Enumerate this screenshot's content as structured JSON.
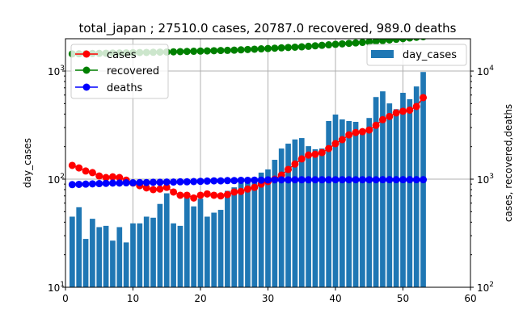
{
  "chart_data": {
    "type": "bar+line",
    "title": "total_japan ; 27510.0 cases, 20787.0 recovered, 989.0 deaths",
    "xlabel": "",
    "ylabel_left": "day_cases",
    "ylabel_right": "cases, recovered,deaths",
    "xlim": [
      0,
      60
    ],
    "x_ticks": [
      0,
      10,
      20,
      30,
      40,
      50,
      60
    ],
    "ylim_left": [
      10,
      1990
    ],
    "ylim_right": [
      100,
      19900
    ],
    "y_scale": "log",
    "y_ticks_left": [
      10,
      100,
      1000
    ],
    "y_ticks_right": [
      100,
      1000,
      10000
    ],
    "grid": true,
    "x": [
      1,
      2,
      3,
      4,
      5,
      6,
      7,
      8,
      9,
      10,
      11,
      12,
      13,
      14,
      15,
      16,
      17,
      18,
      19,
      20,
      21,
      22,
      23,
      24,
      25,
      26,
      27,
      28,
      29,
      30,
      31,
      32,
      33,
      34,
      35,
      36,
      37,
      38,
      39,
      40,
      41,
      42,
      43,
      44,
      45,
      46,
      47,
      48,
      49,
      50,
      51,
      52,
      53
    ],
    "bar_series": {
      "name": "day_cases",
      "axis": "left",
      "color": "#1f77b4",
      "legend": "top-right",
      "values": [
        45,
        55,
        28,
        43,
        36,
        37,
        27,
        36,
        26,
        39,
        39,
        45,
        44,
        59,
        74,
        39,
        37,
        70,
        56,
        66,
        45,
        49,
        52,
        78,
        84,
        92,
        98,
        98,
        115,
        123,
        151,
        192,
        213,
        233,
        240,
        202,
        189,
        192,
        345,
        396,
        357,
        345,
        339,
        290,
        368,
        575,
        649,
        502,
        444,
        629,
        549,
        720,
        980
      ]
    },
    "line_series": [
      {
        "name": "cases",
        "axis": "right",
        "color": "#ff0000",
        "values": [
          1340,
          1270,
          1190,
          1150,
          1070,
          1035,
          1050,
          1035,
          980,
          920,
          870,
          830,
          800,
          810,
          840,
          760,
          710,
          710,
          670,
          710,
          730,
          710,
          700,
          720,
          760,
          770,
          810,
          840,
          900,
          950,
          1000,
          1090,
          1230,
          1380,
          1540,
          1670,
          1700,
          1760,
          1920,
          2130,
          2320,
          2570,
          2700,
          2750,
          2850,
          3150,
          3550,
          3800,
          4100,
          4250,
          4350,
          4700,
          5680
        ]
      },
      {
        "name": "recovered",
        "axis": "right",
        "color": "#008000",
        "values": [
          14400,
          14440,
          14490,
          14530,
          14570,
          14620,
          14660,
          14700,
          14740,
          14790,
          14830,
          14870,
          14910,
          14960,
          15000,
          15060,
          15120,
          15180,
          15240,
          15300,
          15360,
          15420,
          15480,
          15540,
          15600,
          15710,
          15820,
          15930,
          16040,
          16150,
          16270,
          16390,
          16510,
          16630,
          16750,
          16930,
          17110,
          17300,
          17480,
          17670,
          17850,
          18040,
          18220,
          18410,
          18600,
          18870,
          19140,
          19410,
          19680,
          19950,
          20230,
          20510,
          20787
        ]
      },
      {
        "name": "deaths",
        "axis": "right",
        "color": "#0000ff",
        "values": [
          890,
          895,
          900,
          905,
          910,
          915,
          920,
          920,
          925,
          925,
          930,
          930,
          935,
          935,
          940,
          940,
          945,
          945,
          950,
          955,
          960,
          965,
          965,
          970,
          970,
          975,
          975,
          980,
          980,
          985,
          986,
          986,
          986,
          987,
          987,
          987,
          987,
          987,
          987,
          988,
          988,
          988,
          988,
          988,
          988,
          988,
          989,
          989,
          989,
          989,
          989,
          989,
          989
        ]
      }
    ],
    "legend_left_placement": "top-left",
    "legend_right_placement": "top-right"
  }
}
